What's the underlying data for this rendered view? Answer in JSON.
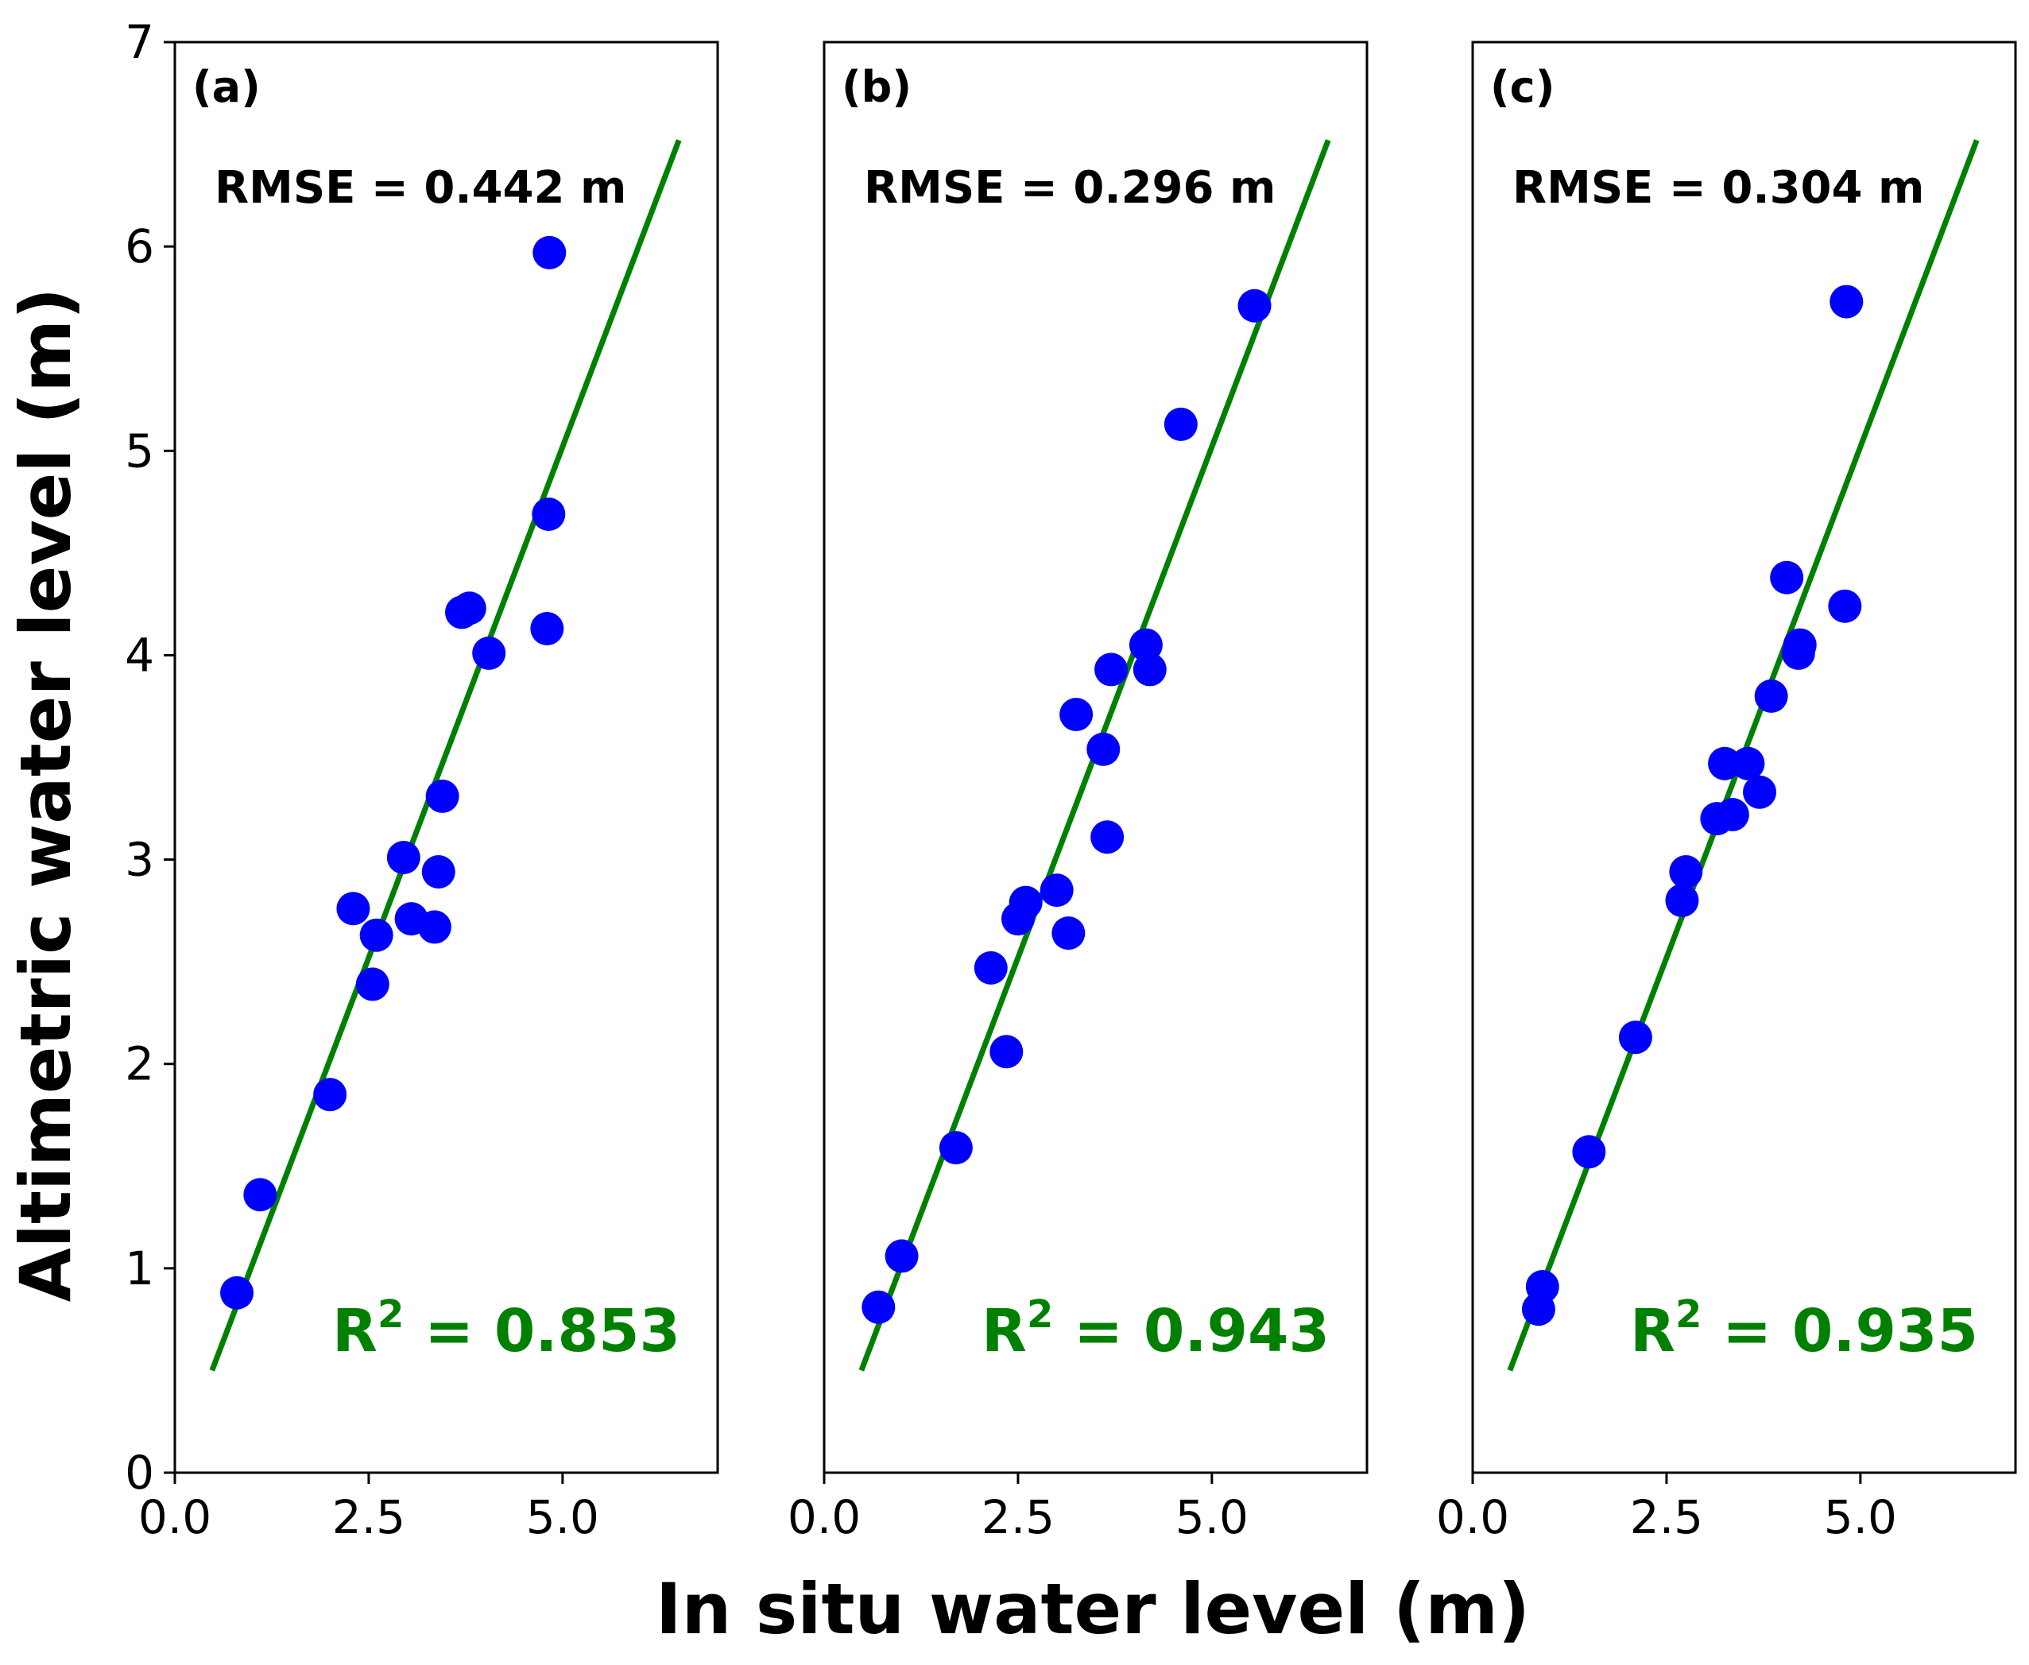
{
  "figure": {
    "xlabel": "In situ water level (m)",
    "ylabel": "Altimetric water level (m)"
  },
  "colors": {
    "points": "#0000ff",
    "fit_line": "#008000",
    "r2_text": "#008000",
    "axes": "#000000"
  },
  "chart_data": [
    {
      "type": "scatter",
      "panel": "(a)",
      "rmse_text": "RMSE = 0.442 m",
      "r2_prefix": "R",
      "r2_sup": "2",
      "r2_value": " = 0.853",
      "xlim": [
        0,
        7
      ],
      "ylim": [
        0,
        7
      ],
      "xticks": [
        0,
        2.5,
        5
      ],
      "xtick_labels": [
        "0.0",
        "2.5",
        "5.0"
      ],
      "yticks": [
        0,
        1,
        2,
        3,
        4,
        5,
        6,
        7
      ],
      "ytick_labels": [
        "0",
        "1",
        "2",
        "3",
        "4",
        "5",
        "6",
        "7"
      ],
      "show_yticks": true,
      "fit_line": {
        "x": [
          0.48,
          6.5
        ],
        "y": [
          0.5,
          6.52
        ]
      },
      "x": [
        0.8,
        1.1,
        2.0,
        2.3,
        2.55,
        2.6,
        2.95,
        3.05,
        3.35,
        3.4,
        3.45,
        3.7,
        3.8,
        4.05,
        4.8,
        4.82,
        4.83
      ],
      "y": [
        0.88,
        1.36,
        1.85,
        2.76,
        2.39,
        2.63,
        3.01,
        2.71,
        2.67,
        2.94,
        3.31,
        4.21,
        4.23,
        4.01,
        4.13,
        4.69,
        5.97
      ]
    },
    {
      "type": "scatter",
      "panel": "(b)",
      "rmse_text": "RMSE = 0.296 m",
      "r2_prefix": "R",
      "r2_sup": "2",
      "r2_value": " = 0.943",
      "xlim": [
        0,
        7
      ],
      "ylim": [
        0,
        7
      ],
      "xticks": [
        0,
        2.5,
        5
      ],
      "xtick_labels": [
        "0.0",
        "2.5",
        "5.0"
      ],
      "yticks": [
        0,
        1,
        2,
        3,
        4,
        5,
        6,
        7
      ],
      "ytick_labels": [],
      "show_yticks": false,
      "fit_line": {
        "x": [
          0.48,
          6.5
        ],
        "y": [
          0.5,
          6.52
        ]
      },
      "x": [
        0.7,
        1.0,
        1.7,
        2.15,
        2.35,
        2.5,
        2.6,
        3.0,
        3.15,
        3.25,
        3.6,
        3.65,
        3.7,
        4.15,
        4.2,
        4.6,
        5.55
      ],
      "y": [
        0.81,
        1.06,
        1.59,
        2.47,
        2.06,
        2.71,
        2.79,
        2.85,
        2.64,
        3.71,
        3.54,
        3.11,
        3.93,
        4.05,
        3.93,
        5.13,
        5.71
      ]
    },
    {
      "type": "scatter",
      "panel": "(c)",
      "rmse_text": "RMSE = 0.304 m",
      "r2_prefix": "R",
      "r2_sup": "2",
      "r2_value": " = 0.935",
      "xlim": [
        0,
        7
      ],
      "ylim": [
        0,
        7
      ],
      "xticks": [
        0,
        2.5,
        5
      ],
      "xtick_labels": [
        "0.0",
        "2.5",
        "5.0"
      ],
      "yticks": [
        0,
        1,
        2,
        3,
        4,
        5,
        6,
        7
      ],
      "ytick_labels": [],
      "show_yticks": false,
      "fit_line": {
        "x": [
          0.48,
          6.5
        ],
        "y": [
          0.5,
          6.52
        ]
      },
      "x": [
        0.85,
        0.9,
        1.5,
        2.1,
        2.7,
        2.75,
        3.15,
        3.25,
        3.35,
        3.55,
        3.7,
        3.85,
        4.05,
        4.2,
        4.22,
        4.8,
        4.82
      ],
      "y": [
        0.8,
        0.91,
        1.57,
        2.13,
        2.8,
        2.94,
        3.2,
        3.47,
        3.22,
        3.47,
        3.33,
        3.8,
        4.38,
        4.01,
        4.05,
        4.24,
        5.73
      ]
    }
  ]
}
